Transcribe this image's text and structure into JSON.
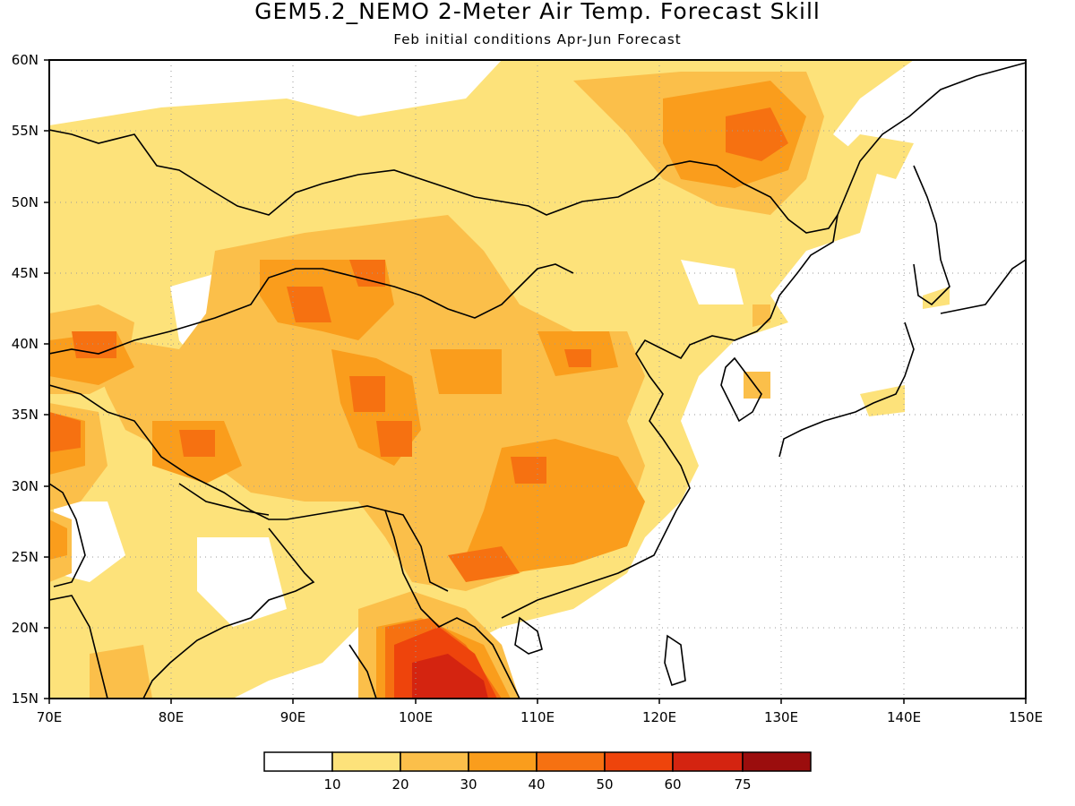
{
  "title": "GEM5.2_NEMO 2-Meter Air Temp. Forecast Skill",
  "subtitle": "Feb initial conditions  Apr-Jun Forecast",
  "map": {
    "lon_ticks": [
      "70E",
      "80E",
      "90E",
      "100E",
      "110E",
      "120E",
      "130E",
      "140E",
      "150E"
    ],
    "lat_ticks": [
      "15N",
      "20N",
      "25N",
      "30N",
      "35N",
      "40N",
      "45N",
      "50N",
      "55N",
      "60N"
    ],
    "gridlines": "dotted"
  },
  "legend": {
    "labels": [
      "10",
      "20",
      "30",
      "40",
      "50",
      "60",
      "75"
    ],
    "colors": [
      "#ffffff",
      "#fde27a",
      "#fbbf4a",
      "#fa9d1c",
      "#f67111",
      "#ee440c",
      "#d42410",
      "#9b0d0d"
    ]
  },
  "colors": {
    "c10": "#fde27a",
    "c20": "#fbbf4a",
    "c30": "#fa9d1c",
    "c40": "#f67111",
    "c50": "#ee440c",
    "c60": "#d42410",
    "c75": "#9b0d0d"
  }
}
